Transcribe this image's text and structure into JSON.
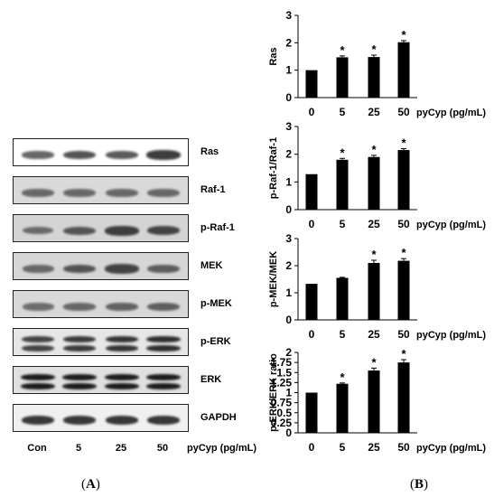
{
  "panel_labels": {
    "a": "A",
    "b": "B"
  },
  "blot": {
    "lanes": [
      "Con",
      "5",
      "25",
      "50"
    ],
    "unit": "pyCyp (pg/mL)",
    "rows": [
      {
        "label": "Ras",
        "bg": "#ffffff",
        "band_color": "#2a2a2a",
        "intensity": [
          0.55,
          0.7,
          0.65,
          0.85
        ],
        "double": false
      },
      {
        "label": "Raf-1",
        "bg": "#d9d9d9",
        "band_color": "#404040",
        "intensity": [
          0.6,
          0.6,
          0.6,
          0.6
        ],
        "double": false
      },
      {
        "label": "p-Raf-1",
        "bg": "#d4d4d4",
        "band_color": "#2e2e2e",
        "intensity": [
          0.45,
          0.65,
          0.85,
          0.8
        ],
        "double": false
      },
      {
        "label": "MEK",
        "bg": "#d6d6d6",
        "band_color": "#333333",
        "intensity": [
          0.5,
          0.7,
          0.85,
          0.6
        ],
        "double": false
      },
      {
        "label": "p-MEK",
        "bg": "#d8d8d8",
        "band_color": "#3a3a3a",
        "intensity": [
          0.5,
          0.55,
          0.6,
          0.65
        ],
        "double": false
      },
      {
        "label": "p-ERK",
        "bg": "#e6e6e6",
        "band_color": "#1a1a1a",
        "intensity": [
          0.7,
          0.75,
          0.8,
          0.85
        ],
        "double": true
      },
      {
        "label": "ERK",
        "bg": "#e0e0e0",
        "band_color": "#101010",
        "intensity": [
          0.9,
          0.9,
          0.9,
          0.9
        ],
        "double": true
      },
      {
        "label": "GAPDH",
        "bg": "#f0f0f0",
        "band_color": "#1c1c1c",
        "intensity": [
          0.8,
          0.8,
          0.8,
          0.8
        ],
        "double": false
      }
    ]
  },
  "chart_data": [
    {
      "type": "bar",
      "ylabel": "Ras",
      "categories": [
        "0",
        "5",
        "25",
        "50"
      ],
      "values": [
        1.0,
        1.47,
        1.48,
        2.02
      ],
      "errors": [
        0,
        0.05,
        0.07,
        0.06
      ],
      "significant": [
        false,
        true,
        true,
        true
      ],
      "ylim": [
        0,
        3
      ],
      "yticks": [
        0,
        1,
        2,
        3
      ],
      "unit": "pyCyp (pg/mL)",
      "marker": "*"
    },
    {
      "type": "bar",
      "ylabel": "p-Raf-1/Raf-1",
      "categories": [
        "0",
        "5",
        "25",
        "50"
      ],
      "values": [
        1.28,
        1.8,
        1.9,
        2.15
      ],
      "errors": [
        0,
        0.05,
        0.06,
        0.05
      ],
      "significant": [
        false,
        true,
        true,
        true
      ],
      "ylim": [
        0,
        3
      ],
      "yticks": [
        0,
        1,
        2,
        3
      ],
      "unit": "pyCyp (pg/mL)",
      "marker": "*"
    },
    {
      "type": "bar",
      "ylabel": "p-MEK/MEK",
      "categories": [
        "0",
        "5",
        "25",
        "50"
      ],
      "values": [
        1.33,
        1.55,
        2.1,
        2.18
      ],
      "errors": [
        0,
        0.02,
        0.1,
        0.08
      ],
      "significant": [
        false,
        false,
        true,
        true
      ],
      "ylim": [
        0,
        3
      ],
      "yticks": [
        0,
        1,
        2,
        3
      ],
      "unit": "pyCyp (pg/mL)",
      "marker": "*"
    },
    {
      "type": "bar",
      "ylabel": "p-ERK/ERK ratio",
      "categories": [
        "0",
        "5",
        "25",
        "50"
      ],
      "values": [
        1.0,
        1.22,
        1.55,
        1.75
      ],
      "errors": [
        0,
        0.02,
        0.06,
        0.07
      ],
      "significant": [
        false,
        true,
        true,
        true
      ],
      "ylim": [
        0,
        2
      ],
      "yticks": [
        0,
        0.25,
        0.5,
        0.75,
        1,
        1.25,
        1.5,
        1.75,
        2
      ],
      "ytick_labels": [
        "0",
        "0.25",
        "0.5",
        "0.75",
        "1",
        "1.25",
        "1.5",
        "1.75",
        "2"
      ],
      "unit": "pyCyp (pg/mL)",
      "marker": "*"
    }
  ]
}
